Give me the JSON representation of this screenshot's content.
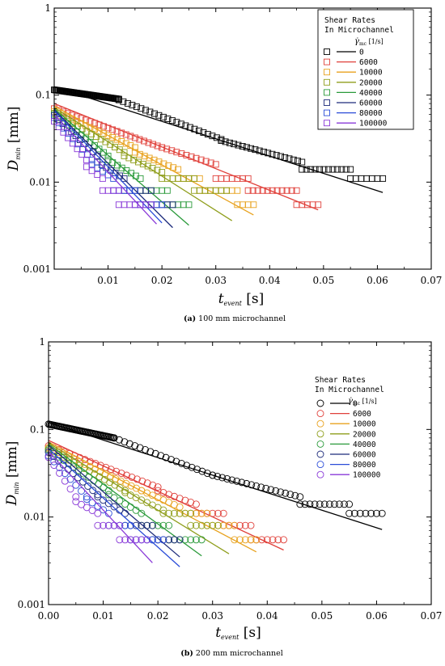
{
  "chart_data": [
    {
      "type": "scatter",
      "panel_caption_letter": "(a)",
      "panel_caption_text": " 100 mm microchannel",
      "xlabel_main": "t",
      "xlabel_sub": "event",
      "xlabel_unit": " [s]",
      "ylabel_main": "D",
      "ylabel_sub": "min",
      "ylabel_unit": " [mm]",
      "xlim": [
        0,
        0.07
      ],
      "ylim": [
        0.001,
        1
      ],
      "yscale": "log",
      "x_ticks": [
        "0.01",
        "0.02",
        "0.03",
        "0.04",
        "0.05",
        "0.06",
        "0.07"
      ],
      "y_ticks": [
        "0.001",
        "0.01",
        "0.1",
        "1"
      ],
      "marker": "square",
      "legend_position": "top-right",
      "legend_title_1": "Shear Rates",
      "legend_title_2": "In Microchannel",
      "legend_unit_symbol": "γ̇",
      "legend_unit_sub": "mc",
      "legend_unit": "[1/s]",
      "series": [
        {
          "name": "0",
          "color": "#000000",
          "fit": [
            [
              0.0,
              0.125
            ],
            [
              0.061,
              0.0076
            ]
          ],
          "clusters": [
            [
              0.0,
              0.012,
              0.115,
              0.09,
              0.18
            ],
            [
              0.012,
              0.031,
              0.088,
              0.031,
              0.8
            ],
            [
              0.031,
              0.046,
              0.03,
              0.017,
              0.75
            ],
            [
              0.046,
              0.055,
              0.014,
              0.014,
              0.8
            ],
            [
              0.055,
              0.061,
              0.011,
              0.011,
              0.9
            ]
          ]
        },
        {
          "name": "6000",
          "color": "#e0403a",
          "fit": [
            [
              0.0,
              0.08
            ],
            [
              0.049,
              0.0048
            ]
          ],
          "clusters": [
            [
              0.0,
              0.02,
              0.07,
              0.025,
              0.8
            ],
            [
              0.02,
              0.03,
              0.025,
              0.016,
              0.85
            ],
            [
              0.03,
              0.036,
              0.011,
              0.011,
              0.9
            ],
            [
              0.036,
              0.045,
              0.008,
              0.008,
              0.9
            ],
            [
              0.045,
              0.049,
              0.0055,
              0.0055,
              0.9
            ]
          ]
        },
        {
          "name": "10000",
          "color": "#e8a21e",
          "fit": [
            [
              0.0,
              0.075
            ],
            [
              0.037,
              0.0042
            ]
          ],
          "clusters": [
            [
              0.0,
              0.015,
              0.065,
              0.025,
              0.8
            ],
            [
              0.015,
              0.023,
              0.022,
              0.014,
              0.85
            ],
            [
              0.023,
              0.027,
              0.011,
              0.011,
              0.9
            ],
            [
              0.027,
              0.034,
              0.008,
              0.008,
              0.9
            ],
            [
              0.034,
              0.037,
              0.0055,
              0.0055,
              0.9
            ]
          ]
        },
        {
          "name": "20000",
          "color": "#8f9e1c",
          "fit": [
            [
              0.0,
              0.072
            ],
            [
              0.033,
              0.0036
            ]
          ],
          "clusters": [
            [
              0.0,
              0.013,
              0.062,
              0.022,
              0.8
            ],
            [
              0.013,
              0.02,
              0.02,
              0.013,
              0.85
            ],
            [
              0.02,
              0.026,
              0.011,
              0.011,
              0.9
            ],
            [
              0.026,
              0.032,
              0.008,
              0.008,
              0.9
            ]
          ]
        },
        {
          "name": "40000",
          "color": "#2a9a3a",
          "fit": [
            [
              0.0,
              0.07
            ],
            [
              0.025,
              0.0032
            ]
          ],
          "clusters": [
            [
              0.0,
              0.01,
              0.06,
              0.02,
              0.8
            ],
            [
              0.01,
              0.016,
              0.018,
              0.011,
              0.85
            ],
            [
              0.016,
              0.021,
              0.008,
              0.008,
              0.9
            ],
            [
              0.021,
              0.025,
              0.0055,
              0.0055,
              0.9
            ]
          ]
        },
        {
          "name": "60000",
          "color": "#1c2a7a",
          "fit": [
            [
              0.0,
              0.068
            ],
            [
              0.022,
              0.003
            ]
          ],
          "clusters": [
            [
              0.0,
              0.008,
              0.058,
              0.02,
              0.8
            ],
            [
              0.008,
              0.013,
              0.017,
              0.011,
              0.85
            ],
            [
              0.013,
              0.018,
              0.008,
              0.008,
              0.9
            ],
            [
              0.018,
              0.022,
              0.0055,
              0.0055,
              0.9
            ]
          ]
        },
        {
          "name": "80000",
          "color": "#2a4cd8",
          "fit": [
            [
              0.0,
              0.066
            ],
            [
              0.02,
              0.0034
            ]
          ],
          "clusters": [
            [
              0.0,
              0.007,
              0.055,
              0.018,
              0.8
            ],
            [
              0.007,
              0.011,
              0.016,
              0.011,
              0.85
            ],
            [
              0.011,
              0.015,
              0.008,
              0.008,
              0.9
            ],
            [
              0.015,
              0.02,
              0.0055,
              0.0055,
              0.9
            ]
          ]
        },
        {
          "name": "100000",
          "color": "#8a3ad8",
          "fit": [
            [
              0.0,
              0.06
            ],
            [
              0.019,
              0.0033
            ]
          ],
          "clusters": [
            [
              0.0,
              0.006,
              0.05,
              0.018,
              0.8
            ],
            [
              0.006,
              0.009,
              0.015,
              0.011,
              0.85
            ],
            [
              0.009,
              0.012,
              0.008,
              0.008,
              0.9
            ],
            [
              0.012,
              0.018,
              0.0055,
              0.0055,
              0.9
            ]
          ]
        }
      ]
    },
    {
      "type": "scatter",
      "panel_caption_letter": "(b)",
      "panel_caption_text": " 200 mm microchannel",
      "xlabel_main": "t",
      "xlabel_sub": "event",
      "xlabel_unit": " [s]",
      "ylabel_main": "D",
      "ylabel_sub": "min",
      "ylabel_unit": " [mm]",
      "xlim": [
        0,
        0.07
      ],
      "ylim": [
        0.001,
        1
      ],
      "yscale": "log",
      "x_ticks": [
        "0.00",
        "0.01",
        "0.02",
        "0.03",
        "0.04",
        "0.05",
        "0.06",
        "0.07"
      ],
      "y_ticks": [
        "0.001",
        "0.01",
        "0.1",
        "1"
      ],
      "marker": "circle",
      "legend_position": "top-right",
      "legend_title_1": "Shear Rates",
      "legend_title_2": "In Microchannel",
      "legend_unit_symbol": "γ̇",
      "legend_unit_sub": "mc",
      "legend_unit": "[1/s]",
      "series": [
        {
          "name": "0",
          "color": "#000000",
          "fit": [
            [
              0.0,
              0.12
            ],
            [
              0.061,
              0.0072
            ]
          ],
          "clusters": [
            [
              0.0,
              0.012,
              0.115,
              0.08,
              0.18
            ],
            [
              0.012,
              0.03,
              0.08,
              0.03,
              0.8
            ],
            [
              0.03,
              0.046,
              0.03,
              0.017,
              0.75
            ],
            [
              0.046,
              0.055,
              0.014,
              0.014,
              0.8
            ],
            [
              0.055,
              0.061,
              0.011,
              0.011,
              0.9
            ]
          ]
        },
        {
          "name": "6000",
          "color": "#e0403a",
          "fit": [
            [
              0.0,
              0.075
            ],
            [
              0.043,
              0.0042
            ]
          ],
          "clusters": [
            [
              0.0,
              0.02,
              0.065,
              0.022,
              0.8
            ],
            [
              0.02,
              0.027,
              0.02,
              0.014,
              0.85
            ],
            [
              0.027,
              0.032,
              0.011,
              0.011,
              0.9
            ],
            [
              0.032,
              0.037,
              0.008,
              0.008,
              0.9
            ],
            [
              0.037,
              0.043,
              0.0055,
              0.0055,
              0.9
            ]
          ]
        },
        {
          "name": "10000",
          "color": "#e8a21e",
          "fit": [
            [
              0.0,
              0.072
            ],
            [
              0.038,
              0.004
            ]
          ],
          "clusters": [
            [
              0.0,
              0.017,
              0.062,
              0.02,
              0.8
            ],
            [
              0.017,
              0.024,
              0.02,
              0.013,
              0.85
            ],
            [
              0.024,
              0.029,
              0.011,
              0.011,
              0.9
            ],
            [
              0.029,
              0.034,
              0.008,
              0.008,
              0.9
            ],
            [
              0.034,
              0.038,
              0.0055,
              0.0055,
              0.9
            ]
          ]
        },
        {
          "name": "20000",
          "color": "#8f9e1c",
          "fit": [
            [
              0.0,
              0.07
            ],
            [
              0.033,
              0.0038
            ]
          ],
          "clusters": [
            [
              0.0,
              0.014,
              0.06,
              0.02,
              0.8
            ],
            [
              0.014,
              0.021,
              0.019,
              0.012,
              0.85
            ],
            [
              0.021,
              0.026,
              0.011,
              0.011,
              0.9
            ],
            [
              0.026,
              0.031,
              0.008,
              0.008,
              0.9
            ]
          ]
        },
        {
          "name": "40000",
          "color": "#2a9a3a",
          "fit": [
            [
              0.0,
              0.068
            ],
            [
              0.028,
              0.0036
            ]
          ],
          "clusters": [
            [
              0.0,
              0.011,
              0.058,
              0.02,
              0.8
            ],
            [
              0.011,
              0.017,
              0.018,
              0.011,
              0.85
            ],
            [
              0.017,
              0.022,
              0.008,
              0.008,
              0.9
            ],
            [
              0.022,
              0.028,
              0.0055,
              0.0055,
              0.9
            ]
          ]
        },
        {
          "name": "60000",
          "color": "#1c2a7a",
          "fit": [
            [
              0.0,
              0.066
            ],
            [
              0.024,
              0.0035
            ]
          ],
          "clusters": [
            [
              0.0,
              0.009,
              0.055,
              0.018,
              0.8
            ],
            [
              0.009,
              0.014,
              0.017,
              0.011,
              0.85
            ],
            [
              0.014,
              0.019,
              0.008,
              0.008,
              0.9
            ],
            [
              0.019,
              0.024,
              0.0055,
              0.0055,
              0.9
            ]
          ]
        },
        {
          "name": "80000",
          "color": "#2a4cd8",
          "fit": [
            [
              0.0,
              0.06
            ],
            [
              0.024,
              0.0027
            ]
          ],
          "clusters": [
            [
              0.0,
              0.007,
              0.05,
              0.017,
              0.8
            ],
            [
              0.007,
              0.011,
              0.016,
              0.011,
              0.85
            ],
            [
              0.011,
              0.015,
              0.008,
              0.008,
              0.9
            ],
            [
              0.015,
              0.021,
              0.0055,
              0.0055,
              0.9
            ]
          ]
        },
        {
          "name": "100000",
          "color": "#8a3ad8",
          "fit": [
            [
              0.0,
              0.056
            ],
            [
              0.019,
              0.003
            ]
          ],
          "clusters": [
            [
              0.0,
              0.005,
              0.048,
              0.017,
              0.8
            ],
            [
              0.005,
              0.009,
              0.015,
              0.011,
              0.85
            ],
            [
              0.009,
              0.013,
              0.008,
              0.008,
              0.9
            ],
            [
              0.013,
              0.018,
              0.0055,
              0.0055,
              0.9
            ]
          ]
        }
      ]
    }
  ]
}
